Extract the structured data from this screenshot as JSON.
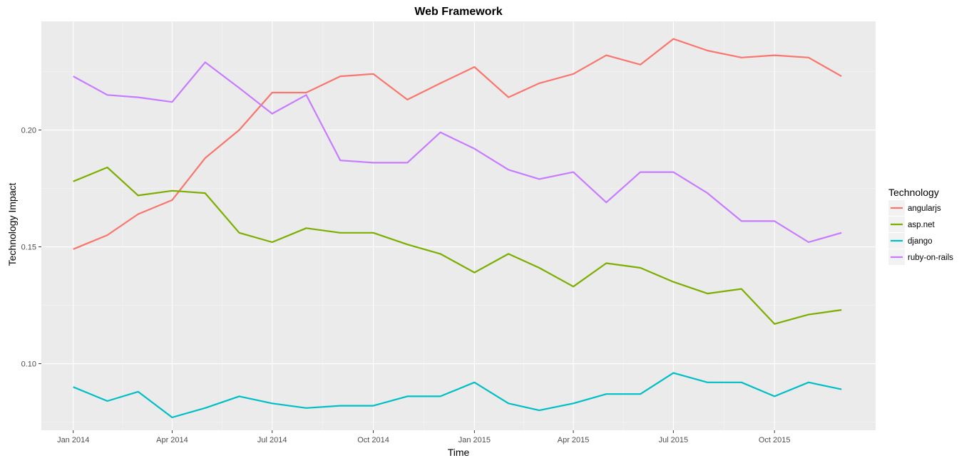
{
  "chart_data": {
    "type": "line",
    "title": "Web Framework",
    "xlabel": "Time",
    "ylabel": "Technology Impact",
    "x": [
      "2014-01",
      "2014-02",
      "2014-03",
      "2014-04",
      "2014-05",
      "2014-06",
      "2014-07",
      "2014-08",
      "2014-09",
      "2014-10",
      "2014-11",
      "2014-12",
      "2015-01",
      "2015-02",
      "2015-03",
      "2015-04",
      "2015-05",
      "2015-06",
      "2015-07",
      "2015-08",
      "2015-09",
      "2015-10",
      "2015-11",
      "2015-12"
    ],
    "x_ticks": [
      {
        "date": "2014-01",
        "label": "Jan 2014"
      },
      {
        "date": "2014-04",
        "label": "Apr 2014"
      },
      {
        "date": "2014-07",
        "label": "Jul 2014"
      },
      {
        "date": "2014-10",
        "label": "Oct 2014"
      },
      {
        "date": "2015-01",
        "label": "Jan 2015"
      },
      {
        "date": "2015-04",
        "label": "Apr 2015"
      },
      {
        "date": "2015-07",
        "label": "Jul 2015"
      },
      {
        "date": "2015-10",
        "label": "Oct 2015"
      }
    ],
    "y_ticks": [
      {
        "value": 0.1,
        "label": "0.10"
      },
      {
        "value": 0.15,
        "label": "0.15"
      },
      {
        "value": 0.2,
        "label": "0.20"
      }
    ],
    "xlim": [
      "2013-12-03",
      "2016-01-01"
    ],
    "ylim": [
      0.0715,
      0.2465
    ],
    "grid": true,
    "legend": {
      "title": "Technology",
      "placement": "right"
    },
    "series": [
      {
        "name": "angularjs",
        "color": "#F8766D",
        "values": [
          0.149,
          0.155,
          0.164,
          0.17,
          0.188,
          0.2,
          0.216,
          0.216,
          0.223,
          0.224,
          0.213,
          0.22,
          0.227,
          0.214,
          0.22,
          0.224,
          0.232,
          0.228,
          0.239,
          0.234,
          0.231,
          0.232,
          0.231,
          0.223
        ]
      },
      {
        "name": "asp.net",
        "color": "#7CAE00",
        "values": [
          0.178,
          0.184,
          0.172,
          0.174,
          0.173,
          0.156,
          0.152,
          0.158,
          0.156,
          0.156,
          0.151,
          0.147,
          0.139,
          0.147,
          0.141,
          0.133,
          0.143,
          0.141,
          0.135,
          0.13,
          0.132,
          0.117,
          0.121,
          0.123
        ]
      },
      {
        "name": "django",
        "color": "#00BFC4",
        "values": [
          0.09,
          0.084,
          0.088,
          0.077,
          0.081,
          0.086,
          0.083,
          0.081,
          0.082,
          0.082,
          0.086,
          0.086,
          0.092,
          0.083,
          0.08,
          0.083,
          0.087,
          0.087,
          0.096,
          0.092,
          0.092,
          0.086,
          0.092,
          0.089
        ]
      },
      {
        "name": "ruby-on-rails",
        "color": "#C77CFF",
        "values": [
          0.223,
          0.215,
          0.214,
          0.212,
          0.229,
          0.218,
          0.207,
          0.215,
          0.187,
          0.186,
          0.186,
          0.199,
          0.192,
          0.183,
          0.179,
          0.182,
          0.169,
          0.182,
          0.182,
          0.173,
          0.161,
          0.161,
          0.152,
          0.156
        ]
      }
    ]
  }
}
